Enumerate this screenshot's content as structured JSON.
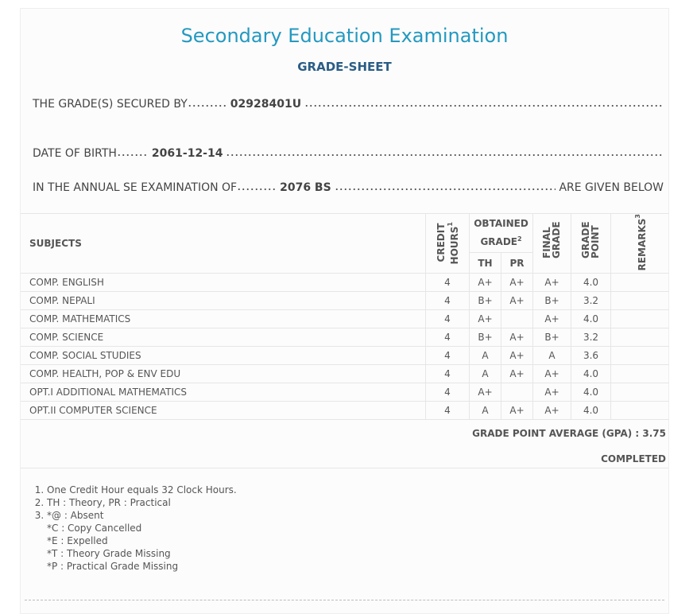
{
  "title": "Secondary Education Examination",
  "subtitle": "GRADE-SHEET",
  "info": [
    {
      "label": "THE GRADE(S) SECURED BY",
      "value": "02928401U"
    },
    {
      "label": "DATE OF BIRTH",
      "value": "2061-12-14"
    },
    {
      "label": "IN THE ANNUAL SE EXAMINATION OF",
      "value": "2076 BS",
      "suffix": "ARE GIVEN BELOW"
    }
  ],
  "table": {
    "headers": {
      "subjects": "SUBJECTS",
      "credit": "CREDIT HOURS",
      "credit_note": "1",
      "obtained": "OBTAINED GRADE",
      "obtained_note": "2",
      "th": "TH",
      "pr": "PR",
      "final": "FINAL GRADE",
      "grade_point": "GRADE POINT",
      "remarks": "REMARKS",
      "remarks_note": "3"
    },
    "rows": [
      [
        "COMP. ENGLISH",
        4,
        "A+",
        "A+",
        "A+",
        "4.0"
      ],
      [
        "COMP. NEPALI",
        4,
        "B+",
        "A+",
        "B+",
        "3.2"
      ],
      [
        "COMP. MATHEMATICS",
        4,
        "A+",
        null,
        "A+",
        "4.0"
      ],
      [
        "COMP. SCIENCE",
        4,
        "B+",
        "A+",
        "B+",
        "3.2"
      ],
      [
        "COMP. SOCIAL STUDIES",
        4,
        "A",
        "A+",
        "A",
        "3.6"
      ],
      [
        "COMP. HEALTH, POP & ENV EDU",
        4,
        "A",
        "A+",
        "A+",
        "4.0"
      ],
      [
        "OPT.I ADDITIONAL MATHEMATICS",
        4,
        "A+",
        null,
        "A+",
        "4.0"
      ],
      [
        "OPT.II COMPUTER SCIENCE",
        4,
        "A",
        "A+",
        "A+",
        "4.0"
      ]
    ]
  },
  "gpa": {
    "label": "GRADE POINT AVERAGE (GPA) :",
    "value": 3.75
  },
  "status": "COMPLETED",
  "notes": [
    "One Credit Hour equals 32 Clock Hours.",
    "TH : Theory, PR : Practical",
    "*@ : Absent"
  ],
  "sub_notes": [
    "*C : Copy Cancelled",
    "*E : Expelled",
    "*T : Theory Grade Missing",
    "*P : Practical Grade Missing"
  ]
}
